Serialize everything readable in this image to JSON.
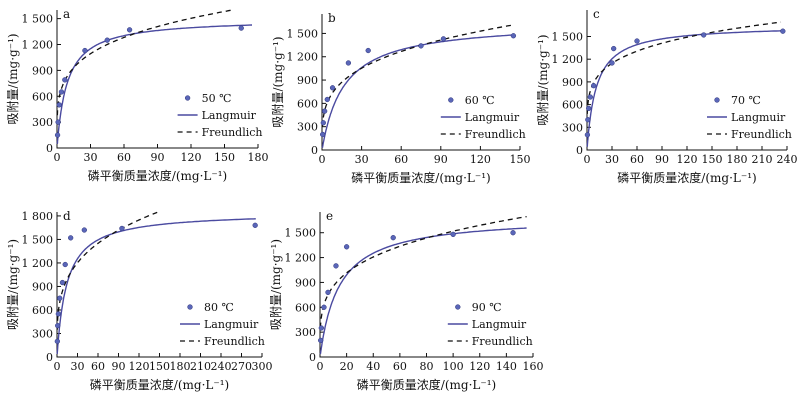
{
  "chart_data": [
    {
      "type": "scatter",
      "panel_label": "a",
      "xlabel": "磷平衡质量浓度/(mg·L⁻¹)",
      "ylabel": "吸附量/(mg·g⁻¹)",
      "xlim": [
        0,
        180
      ],
      "ylim": [
        0,
        1600
      ],
      "x_ticks": [
        "0",
        "30",
        "60",
        "90",
        "120",
        "150",
        "180"
      ],
      "y_ticks": [
        "0",
        "300",
        "600",
        "900",
        "1 200",
        "1 500"
      ],
      "legend_position": "bottom-right",
      "series": [
        {
          "name": "50 ℃",
          "kind": "points",
          "x": [
            0.5,
            1,
            2,
            4,
            7,
            25,
            45,
            65,
            165
          ],
          "y": [
            150,
            300,
            500,
            650,
            790,
            1130,
            1250,
            1370,
            1390
          ]
        },
        {
          "name": "Langmuir",
          "kind": "line",
          "model": "langmuir",
          "qm": 1500,
          "K": 0.11
        },
        {
          "name": "Freundlich",
          "kind": "dashed",
          "model": "freundlich",
          "Kf": 500,
          "n": 0.23
        }
      ]
    },
    {
      "type": "scatter",
      "panel_label": "b",
      "xlabel": "磷平衡质量浓度/(mg·L⁻¹)",
      "ylabel": "吸附量/(mg·g⁻¹)",
      "xlim": [
        0,
        150
      ],
      "ylim": [
        0,
        1750
      ],
      "x_ticks": [
        "0",
        "30",
        "60",
        "90",
        "120",
        "150"
      ],
      "y_ticks": [
        "0",
        "300",
        "600",
        "900",
        "1 200",
        "1 500"
      ],
      "legend_position": "bottom-right",
      "series": [
        {
          "name": "60 ℃",
          "kind": "points",
          "x": [
            0.5,
            1,
            2,
            4,
            8,
            20,
            35,
            75,
            92,
            145
          ],
          "y": [
            200,
            350,
            500,
            650,
            800,
            1120,
            1280,
            1340,
            1430,
            1470
          ]
        },
        {
          "name": "Langmuir",
          "kind": "line",
          "model": "langmuir",
          "qm": 1650,
          "K": 0.06
        },
        {
          "name": "Freundlich",
          "kind": "dashed",
          "model": "freundlich",
          "Kf": 420,
          "n": 0.27
        }
      ]
    },
    {
      "type": "scatter",
      "panel_label": "c",
      "xlabel": "磷平衡质量浓度/(mg·L⁻¹)",
      "ylabel": "吸附量/(mg·g⁻¹)",
      "xlim": [
        0,
        240
      ],
      "ylim": [
        0,
        1850
      ],
      "x_ticks": [
        "0",
        "30",
        "60",
        "90",
        "120",
        "150",
        "180",
        "210",
        "240"
      ],
      "y_ticks": [
        "0",
        "300",
        "600",
        "900",
        "1 200",
        "1 500"
      ],
      "legend_position": "bottom-right",
      "series": [
        {
          "name": "70 ℃",
          "kind": "points",
          "x": [
            0.5,
            1,
            2,
            4,
            8,
            30,
            32,
            60,
            140,
            235
          ],
          "y": [
            200,
            400,
            550,
            700,
            850,
            1150,
            1340,
            1440,
            1520,
            1570
          ]
        },
        {
          "name": "Langmuir",
          "kind": "line",
          "model": "langmuir",
          "qm": 1650,
          "K": 0.09
        },
        {
          "name": "Freundlich",
          "kind": "dashed",
          "model": "freundlich",
          "Kf": 600,
          "n": 0.19
        }
      ]
    },
    {
      "type": "scatter",
      "panel_label": "d",
      "xlabel": "磷平衡质量浓度/(mg·L⁻¹)",
      "ylabel": "吸附量/(mg·g⁻¹)",
      "xlim": [
        0,
        300
      ],
      "ylim": [
        0,
        1850
      ],
      "x_ticks": [
        "0",
        "30",
        "60",
        "90",
        "120",
        "150",
        "180",
        "210",
        "240",
        "270",
        "300"
      ],
      "y_ticks": [
        "0",
        "300",
        "600",
        "900",
        "1 200",
        "1 500",
        "1 800"
      ],
      "legend_position": "bottom-right",
      "series": [
        {
          "name": "80 ℃",
          "kind": "points",
          "x": [
            0.5,
            1,
            2,
            4,
            8,
            12,
            20,
            40,
            95,
            290
          ],
          "y": [
            200,
            400,
            550,
            750,
            950,
            1180,
            1520,
            1620,
            1640,
            1680
          ]
        },
        {
          "name": "Langmuir",
          "kind": "line",
          "model": "langmuir",
          "qm": 1850,
          "K": 0.07
        },
        {
          "name": "Freundlich",
          "kind": "dashed",
          "model": "freundlich",
          "Kf": 480,
          "n": 0.27,
          "x_end": 240
        }
      ]
    },
    {
      "type": "scatter",
      "panel_label": "e",
      "xlabel": "磷平衡质量浓度/(mg·L⁻¹)",
      "ylabel": "吸附量/(mg·g⁻¹)",
      "xlim": [
        0,
        160
      ],
      "ylim": [
        0,
        1750
      ],
      "x_ticks": [
        "0",
        "20",
        "40",
        "60",
        "80",
        "100",
        "120",
        "140",
        "160"
      ],
      "y_ticks": [
        "0",
        "300",
        "600",
        "900",
        "1 200",
        "1 500"
      ],
      "legend_position": "bottom-right",
      "series": [
        {
          "name": "90 ℃",
          "kind": "points",
          "x": [
            0.5,
            1,
            3,
            6,
            12,
            20,
            55,
            100,
            145
          ],
          "y": [
            200,
            350,
            600,
            780,
            1100,
            1330,
            1440,
            1480,
            1500
          ]
        },
        {
          "name": "Langmuir",
          "kind": "line",
          "model": "langmuir",
          "qm": 1700,
          "K": 0.07
        },
        {
          "name": "Freundlich",
          "kind": "dashed",
          "model": "freundlich",
          "Kf": 480,
          "n": 0.25
        }
      ]
    }
  ]
}
